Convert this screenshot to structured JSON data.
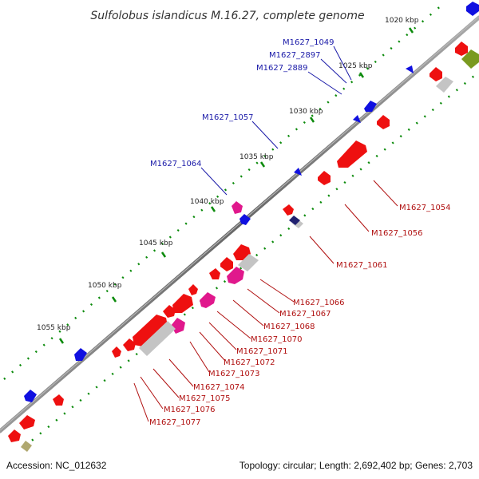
{
  "title": "Sulfolobus islandicus M.16.27, complete genome",
  "accession": "Accession: NC_012632",
  "summary": "Topology: circular; Length: 2,692,402 bp; Genes: 2,703",
  "kbp_labels": [
    "1020 kbp",
    "1025 kbp",
    "1030 kbp",
    "1035 kbp",
    "1040 kbp",
    "1045 kbp",
    "1050 kbp",
    "1055 kbp"
  ],
  "top_labels": [
    "M1627_1049",
    "M1627_2897",
    "M1627_2889",
    "M1627_1057",
    "M1627_1064"
  ],
  "bottom_labels": [
    "M1627_1054",
    "M1627_1056",
    "M1627_1061",
    "M1627_1066",
    "M1627_1067",
    "M1627_1068",
    "M1627_1070",
    "M1627_1071",
    "M1627_1072",
    "M1627_1073",
    "M1627_1074",
    "M1627_1075",
    "M1627_1076",
    "M1627_1077"
  ],
  "colors": {
    "forward_gene": "#1010e0",
    "reverse_gene": "#ee1010",
    "rna_gene": "#e0188c",
    "pseudo_gene": "#c0c0c0",
    "other_gene": "#7a9a20",
    "backbone": "#777777",
    "tick": "#0a8a0a"
  }
}
